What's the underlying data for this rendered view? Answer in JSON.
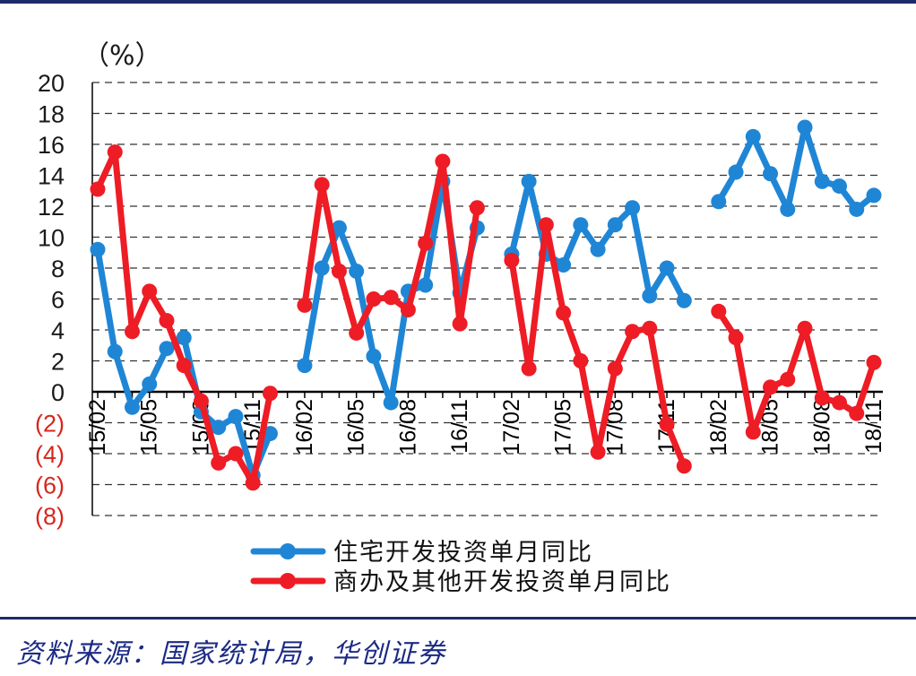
{
  "chart_data": {
    "type": "line",
    "unit_label": "（%）",
    "ylim": [
      -8,
      20
    ],
    "y_ticks": [
      20,
      18,
      16,
      14,
      12,
      10,
      8,
      6,
      4,
      2,
      0,
      -2,
      -4,
      -6,
      -8
    ],
    "y_tick_labels": [
      "20",
      "18",
      "16",
      "14",
      "12",
      "10",
      "8",
      "6",
      "4",
      "2",
      "0",
      "(2)",
      "(4)",
      "(6)",
      "(8)"
    ],
    "x": [
      "15/02",
      "15/03",
      "15/04",
      "15/05",
      "15/06",
      "15/07",
      "15/08",
      "15/09",
      "15/10",
      "15/11",
      "15/12",
      "16/01",
      "16/02",
      "16/03",
      "16/04",
      "16/05",
      "16/06",
      "16/07",
      "16/08",
      "16/09",
      "16/10",
      "16/11",
      "16/12",
      "17/01",
      "17/02",
      "17/03",
      "17/04",
      "17/05",
      "17/06",
      "17/07",
      "17/08",
      "17/09",
      "17/10",
      "17/11",
      "17/12",
      "18/01",
      "18/02",
      "18/03",
      "18/04",
      "18/05",
      "18/06",
      "18/07",
      "18/08",
      "18/09",
      "18/10",
      "18/11"
    ],
    "x_tick_labels": [
      "15/02",
      "15/05",
      "15/08",
      "15/11",
      "16/02",
      "16/05",
      "16/08",
      "16/11",
      "17/02",
      "17/05",
      "17/08",
      "17/11",
      "18/02",
      "18/05",
      "18/08",
      "18/11"
    ],
    "grid": true,
    "legend_position": "bottom",
    "series": [
      {
        "name": "住宅开发投资单月同比",
        "color": "#1f86d6",
        "values": [
          9.2,
          2.6,
          -1.0,
          0.5,
          2.8,
          3.5,
          -1.3,
          -2.3,
          -1.6,
          -5.4,
          -2.7,
          null,
          1.7,
          8.0,
          10.6,
          7.8,
          2.3,
          -0.7,
          6.5,
          6.9,
          13.6,
          6.4,
          10.6,
          null,
          8.9,
          13.6,
          8.9,
          8.2,
          10.8,
          9.2,
          10.8,
          11.9,
          6.2,
          8.0,
          5.9,
          null,
          12.3,
          14.2,
          16.5,
          14.1,
          11.8,
          17.1,
          13.6,
          13.3,
          11.8,
          12.7
        ]
      },
      {
        "name": "商办及其他开发投资单月同比",
        "color": "#ee1c25",
        "values": [
          13.1,
          15.5,
          3.9,
          6.5,
          4.6,
          1.7,
          -0.6,
          -4.6,
          -4.0,
          -5.9,
          -0.1,
          null,
          5.6,
          13.4,
          7.8,
          3.8,
          6.0,
          6.1,
          5.3,
          9.6,
          14.9,
          4.4,
          11.9,
          null,
          8.5,
          1.5,
          10.8,
          5.1,
          2.0,
          -3.9,
          1.5,
          3.9,
          4.1,
          -2.1,
          -4.8,
          null,
          5.2,
          3.5,
          -2.6,
          0.3,
          0.8,
          4.1,
          -0.4,
          -0.7,
          -1.4,
          1.9
        ]
      }
    ]
  },
  "source": "资料来源：国家统计局，华创证券"
}
